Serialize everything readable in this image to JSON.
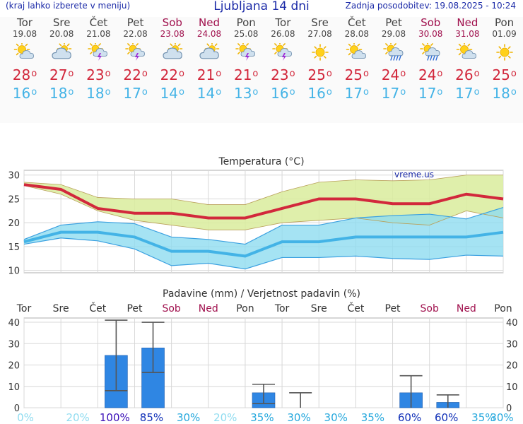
{
  "header": {
    "left_note": "(kraj lahko izberete v meniju)",
    "title": "Ljubljana 14 dni",
    "updated": "Zadnja posodobitev: 19.08.2025 - 10:24"
  },
  "forecast": {
    "degree_symbol": "o",
    "days": [
      {
        "name": "Tor",
        "date": "19.08",
        "weekend": false,
        "icon": "sun-cloud-icon",
        "tmax": "28",
        "tmin": "16"
      },
      {
        "name": "Sre",
        "date": "20.08",
        "weekend": false,
        "icon": "cloudy-icon",
        "tmax": "27",
        "tmin": "18"
      },
      {
        "name": "Čet",
        "date": "21.08",
        "weekend": false,
        "icon": "sun-storm-icon",
        "tmax": "23",
        "tmin": "18"
      },
      {
        "name": "Pet",
        "date": "22.08",
        "weekend": false,
        "icon": "sun-storm-icon",
        "tmax": "22",
        "tmin": "17"
      },
      {
        "name": "Sob",
        "date": "23.08",
        "weekend": true,
        "icon": "cloudy-icon",
        "tmax": "22",
        "tmin": "14"
      },
      {
        "name": "Ned",
        "date": "24.08",
        "weekend": true,
        "icon": "cloudy-icon",
        "tmax": "21",
        "tmin": "14"
      },
      {
        "name": "Pon",
        "date": "25.08",
        "weekend": false,
        "icon": "sun-storm-icon",
        "tmax": "21",
        "tmin": "13"
      },
      {
        "name": "Tor",
        "date": "26.08",
        "weekend": false,
        "icon": "sun-storm-icon",
        "tmax": "23",
        "tmin": "16"
      },
      {
        "name": "Sre",
        "date": "27.08",
        "weekend": false,
        "icon": "sun-icon",
        "tmax": "25",
        "tmin": "16"
      },
      {
        "name": "Čet",
        "date": "28.08",
        "weekend": false,
        "icon": "sun-cloud-icon",
        "tmax": "25",
        "tmin": "17"
      },
      {
        "name": "Pet",
        "date": "29.08",
        "weekend": false,
        "icon": "sun-rain-icon",
        "tmax": "24",
        "tmin": "17"
      },
      {
        "name": "Sob",
        "date": "30.08",
        "weekend": true,
        "icon": "sun-rain-icon",
        "tmax": "24",
        "tmin": "17"
      },
      {
        "name": "Ned",
        "date": "31.08",
        "weekend": true,
        "icon": "sun-cloud-icon",
        "tmax": "26",
        "tmin": "17"
      },
      {
        "name": "Pon",
        "date": "01.09",
        "weekend": false,
        "icon": "sun-icon",
        "tmax": "25",
        "tmin": "18"
      }
    ]
  },
  "colors": {
    "tmax": "#d2283c",
    "tmin": "#43b3e6",
    "weekend": "#a0104d",
    "weekday": "#444444",
    "max_band": "#d9ec9c",
    "min_band": "#8fdcf0",
    "overlap_band": "#7fd4a6",
    "bar": "#2f86e3",
    "pct_low": "#8fdcf0",
    "pct_mid": "#25a8dd",
    "pct_high": "#1030b8",
    "pct_top": "#3a0fb8"
  },
  "chart_data": [
    {
      "type": "line",
      "title": "Temperatura (°C)",
      "watermark": "vreme.us",
      "ylim": [
        9.5,
        31
      ],
      "yticks": [
        "10",
        "15",
        "20",
        "25",
        "30"
      ],
      "ytick_values": [
        10,
        15,
        20,
        25,
        30
      ],
      "x": [
        "19.08",
        "20.08",
        "21.08",
        "22.08",
        "23.08",
        "24.08",
        "25.08",
        "26.08",
        "27.08",
        "28.08",
        "29.08",
        "30.08",
        "31.08",
        "01.09"
      ],
      "grid": true,
      "series": [
        {
          "role": "max",
          "values": [
            28,
            27,
            23,
            22,
            22,
            21,
            21,
            23,
            25,
            25,
            24,
            24,
            26,
            25
          ]
        },
        {
          "role": "min",
          "values": [
            16,
            18,
            18,
            17,
            14,
            14,
            13,
            16,
            16,
            17,
            17,
            17,
            17,
            18
          ]
        },
        {
          "role": "max-range-upper",
          "values": [
            28.5,
            28,
            25.3,
            25,
            25,
            23.8,
            23.8,
            26.5,
            28.5,
            29,
            28.8,
            29,
            30,
            30
          ]
        },
        {
          "role": "max-range-lower",
          "values": [
            27.8,
            26,
            22.5,
            20.5,
            19.5,
            18.5,
            18.5,
            20,
            20.5,
            21,
            20,
            19.5,
            22.5,
            21
          ]
        },
        {
          "role": "min-range-upper",
          "values": [
            16.5,
            19.5,
            20.2,
            19.8,
            17,
            16.5,
            15.5,
            19.5,
            19.5,
            21,
            21.5,
            21.8,
            20.8,
            23.2
          ]
        },
        {
          "role": "min-range-lower",
          "values": [
            15.5,
            16.8,
            16.2,
            14.5,
            11,
            11.5,
            10.3,
            12.7,
            12.7,
            13,
            12.5,
            12.3,
            13.2,
            13
          ]
        }
      ]
    },
    {
      "type": "bar",
      "title": "Padavine (mm) / Verjetnost padavin (%)",
      "categories": [
        "Tor",
        "Sre",
        "Čet",
        "Pet",
        "Sob",
        "Ned",
        "Pon",
        "Tor",
        "Sre",
        "Čet",
        "Pet",
        "Sob",
        "Ned",
        "Pon"
      ],
      "weekend": [
        false,
        false,
        false,
        false,
        true,
        true,
        false,
        false,
        false,
        false,
        false,
        true,
        true,
        false
      ],
      "values": [
        0,
        0,
        24.5,
        28,
        0,
        0,
        7,
        0,
        0,
        0,
        7,
        2.5,
        0,
        0
      ],
      "error_low": [
        0,
        0,
        8,
        16.5,
        0,
        0,
        2,
        0,
        0,
        0,
        0,
        0,
        0,
        0
      ],
      "error_high": [
        0,
        0,
        41,
        40,
        0,
        0,
        11,
        7,
        0,
        0,
        15,
        6,
        0,
        0
      ],
      "probability": [
        "0%",
        "20%",
        "100%",
        "85%",
        "30%",
        "20%",
        "35%",
        "30%",
        "30%",
        "35%",
        "60%",
        "60%",
        "35%",
        "30%"
      ],
      "probability_values": [
        0,
        20,
        100,
        85,
        30,
        20,
        35,
        30,
        30,
        35,
        60,
        60,
        35,
        30
      ],
      "ylim": [
        0,
        42
      ],
      "yticks": [
        "0",
        "10",
        "20",
        "30",
        "40"
      ],
      "ytick_values": [
        0,
        10,
        20,
        30,
        40
      ],
      "grid": true
    }
  ]
}
